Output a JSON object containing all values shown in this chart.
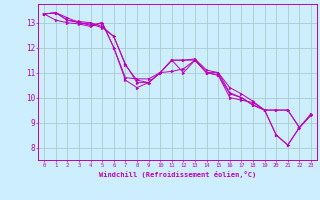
{
  "xlabel": "Windchill (Refroidissement éolien,°C)",
  "xlim": [
    -0.5,
    23.5
  ],
  "ylim": [
    7.5,
    13.75
  ],
  "yticks": [
    8,
    9,
    10,
    11,
    12,
    13
  ],
  "xticks": [
    0,
    1,
    2,
    3,
    4,
    5,
    6,
    7,
    8,
    9,
    10,
    11,
    12,
    13,
    14,
    15,
    16,
    17,
    18,
    19,
    20,
    21,
    22,
    23
  ],
  "bg_color": "#cceeff",
  "grid_color": "#aacccc",
  "line_color": "#bb00bb",
  "lines": [
    {
      "x": [
        0,
        1,
        2,
        3,
        4,
        5,
        6,
        7,
        8,
        9,
        10,
        11,
        12,
        13,
        14,
        15,
        16,
        17,
        18,
        19,
        20,
        21,
        22,
        23
      ],
      "y": [
        13.35,
        13.4,
        13.1,
        13.0,
        12.9,
        13.0,
        12.0,
        10.8,
        10.75,
        10.75,
        11.0,
        11.05,
        11.15,
        11.5,
        11.0,
        11.0,
        10.2,
        10.0,
        9.7,
        9.5,
        8.5,
        8.1,
        8.8,
        9.3
      ]
    },
    {
      "x": [
        0,
        1,
        2,
        3,
        4,
        5,
        6,
        7,
        8,
        9,
        10,
        11,
        12,
        13,
        14,
        15,
        16,
        17,
        18,
        19,
        20,
        21,
        22,
        23
      ],
      "y": [
        13.35,
        13.4,
        13.1,
        13.05,
        13.0,
        12.85,
        12.45,
        11.35,
        10.6,
        10.6,
        11.0,
        11.5,
        11.5,
        11.55,
        11.1,
        11.0,
        10.4,
        10.15,
        9.85,
        9.5,
        9.5,
        9.5,
        8.8,
        9.35
      ]
    },
    {
      "x": [
        0,
        1,
        2,
        3,
        4,
        5,
        6,
        7,
        8,
        9,
        10,
        11,
        12,
        13,
        14,
        15,
        16,
        17,
        18,
        19,
        20,
        21,
        22,
        23
      ],
      "y": [
        13.35,
        13.1,
        13.0,
        12.95,
        12.85,
        13.0,
        12.0,
        10.7,
        10.4,
        10.6,
        11.0,
        11.5,
        11.5,
        11.5,
        11.0,
        10.9,
        10.15,
        10.0,
        9.7,
        9.5,
        8.5,
        8.1,
        8.8,
        9.3
      ]
    },
    {
      "x": [
        0,
        1,
        2,
        3,
        4,
        5,
        6,
        7,
        8,
        9,
        10,
        11,
        12,
        13,
        14,
        15,
        16,
        17,
        18,
        19,
        20,
        21,
        22,
        23
      ],
      "y": [
        13.35,
        13.4,
        13.2,
        13.0,
        12.95,
        12.8,
        12.45,
        11.3,
        10.7,
        10.6,
        11.0,
        11.5,
        11.0,
        11.5,
        11.0,
        10.9,
        10.0,
        9.9,
        9.8,
        9.5,
        9.5,
        9.5,
        8.8,
        9.3
      ]
    }
  ]
}
